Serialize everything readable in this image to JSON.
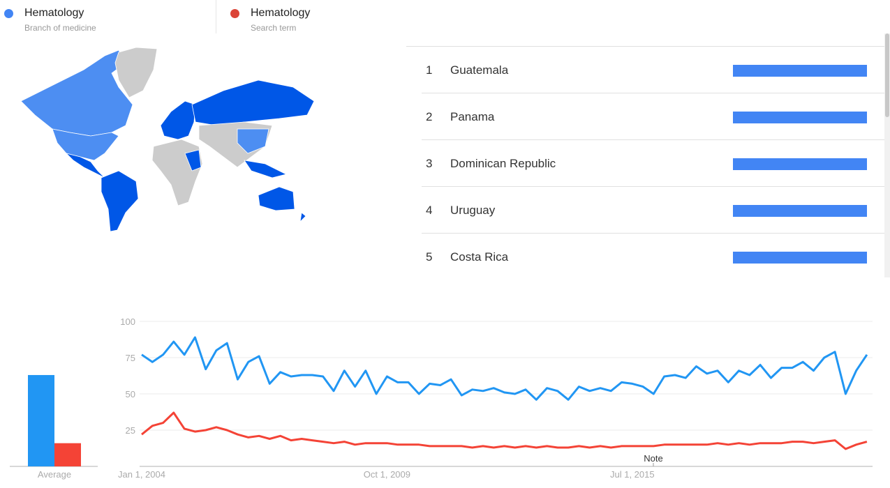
{
  "legend": [
    {
      "title": "Hematology",
      "subtitle": "Branch of medicine",
      "color": "#4285f4"
    },
    {
      "title": "Hematology",
      "subtitle": "Search term",
      "color": "#db4437"
    }
  ],
  "map": {
    "type": "choropleth-world",
    "high_color": "#0057e7",
    "mid_color": "#4d8ef2",
    "no_data_color": "#cccccc"
  },
  "regions": [
    {
      "rank": "1",
      "name": "Guatemala",
      "value": 100
    },
    {
      "rank": "2",
      "name": "Panama",
      "value": 100
    },
    {
      "rank": "3",
      "name": "Dominican Republic",
      "value": 100
    },
    {
      "rank": "4",
      "name": "Uruguay",
      "value": 100
    },
    {
      "rank": "5",
      "name": "Costa Rica",
      "value": 100
    }
  ],
  "chart_data": {
    "type": "line",
    "average": {
      "label": "Average",
      "values": [
        63,
        16
      ]
    },
    "ylim": [
      0,
      100
    ],
    "yticks": [
      "25",
      "50",
      "75",
      "100"
    ],
    "xticks": [
      "Jan 1, 2004",
      "Oct 1, 2009",
      "Jul 1, 2015"
    ],
    "annotation": "Note",
    "grid": true,
    "colors": [
      "#2196f3",
      "#f44336"
    ],
    "x": [
      "2004-01",
      "2004-04",
      "2004-07",
      "2004-10",
      "2005-01",
      "2005-04",
      "2005-07",
      "2005-10",
      "2006-01",
      "2006-04",
      "2006-07",
      "2006-10",
      "2007-01",
      "2007-04",
      "2007-07",
      "2007-10",
      "2008-01",
      "2008-04",
      "2008-07",
      "2008-10",
      "2009-01",
      "2009-04",
      "2009-07",
      "2009-10",
      "2010-01",
      "2010-04",
      "2010-07",
      "2010-10",
      "2011-01",
      "2011-04",
      "2011-07",
      "2011-10",
      "2012-01",
      "2012-04",
      "2012-07",
      "2012-10",
      "2013-01",
      "2013-04",
      "2013-07",
      "2013-10",
      "2014-01",
      "2014-04",
      "2014-07",
      "2014-10",
      "2015-01",
      "2015-04",
      "2015-07",
      "2015-10",
      "2016-01",
      "2016-04",
      "2016-07",
      "2016-10",
      "2017-01",
      "2017-04",
      "2017-07",
      "2017-10",
      "2018-01",
      "2018-04",
      "2018-07",
      "2018-10",
      "2019-01",
      "2019-04",
      "2019-07",
      "2019-10",
      "2020-01",
      "2020-04",
      "2020-07",
      "2020-10",
      "2021-01"
    ],
    "series": [
      {
        "values": [
          77,
          72,
          77,
          86,
          77,
          89,
          67,
          80,
          85,
          60,
          72,
          76,
          57,
          65,
          62,
          63,
          63,
          62,
          52,
          66,
          55,
          66,
          50,
          62,
          58,
          58,
          50,
          57,
          56,
          60,
          49,
          53,
          52,
          54,
          51,
          50,
          53,
          46,
          54,
          52,
          46,
          55,
          52,
          54,
          52,
          58,
          57,
          55,
          50,
          62,
          63,
          61,
          69,
          64,
          66,
          58,
          66,
          63,
          70,
          61,
          68,
          68,
          72,
          66,
          75,
          79,
          50,
          66,
          77
        ]
      },
      {
        "values": [
          22,
          28,
          30,
          37,
          26,
          24,
          25,
          27,
          25,
          22,
          20,
          21,
          19,
          21,
          18,
          19,
          18,
          17,
          16,
          17,
          15,
          16,
          16,
          16,
          15,
          15,
          15,
          14,
          14,
          14,
          14,
          13,
          14,
          13,
          14,
          13,
          14,
          13,
          14,
          13,
          13,
          14,
          13,
          14,
          13,
          14,
          14,
          14,
          14,
          15,
          15,
          15,
          15,
          15,
          16,
          15,
          16,
          15,
          16,
          16,
          16,
          17,
          17,
          16,
          17,
          18,
          12,
          15,
          17
        ]
      }
    ]
  }
}
